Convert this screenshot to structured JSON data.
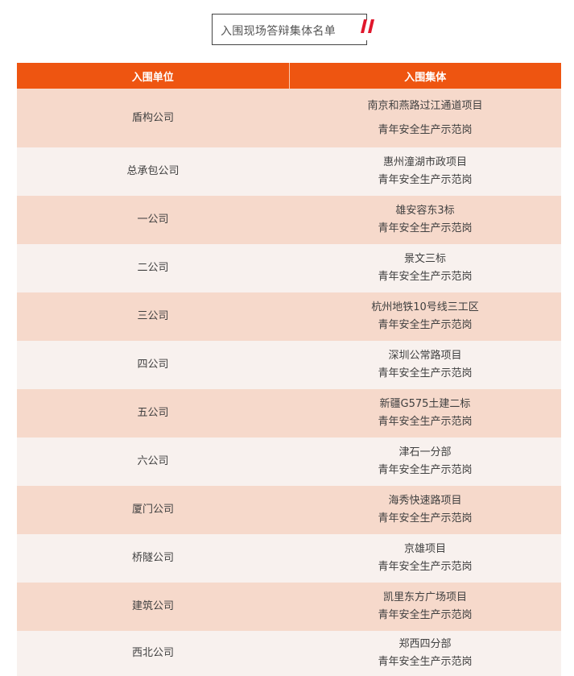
{
  "title": "入围现场答辩集体名单",
  "colors": {
    "header": "#ee5511",
    "row_odd": "#f6d9cb",
    "row_even": "#f8f1ee",
    "quote": "#e0162b"
  },
  "table": {
    "headers": [
      "入围单位",
      "入围集体"
    ],
    "rows": [
      {
        "unit": "盾构公司",
        "project": "南京和燕路过江通道项目",
        "group": "青年安全生产示范岗"
      },
      {
        "unit": "总承包公司",
        "project": "惠州潼湖市政项目",
        "group": "青年安全生产示范岗"
      },
      {
        "unit": "一公司",
        "project": "雄安容东3标",
        "group": "青年安全生产示范岗"
      },
      {
        "unit": "二公司",
        "project": "景文三标",
        "group": "青年安全生产示范岗"
      },
      {
        "unit": "三公司",
        "project": "杭州地铁10号线三工区",
        "group": "青年安全生产示范岗"
      },
      {
        "unit": "四公司",
        "project": "深圳公常路项目",
        "group": "青年安全生产示范岗"
      },
      {
        "unit": "五公司",
        "project": "新疆G575土建二标",
        "group": "青年安全生产示范岗"
      },
      {
        "unit": "六公司",
        "project": "津石一分部",
        "group": "青年安全生产示范岗"
      },
      {
        "unit": "厦门公司",
        "project": "海秀快速路项目",
        "group": "青年安全生产示范岗"
      },
      {
        "unit": "桥隧公司",
        "project": "京雄项目",
        "group": "青年安全生产示范岗"
      },
      {
        "unit": "建筑公司",
        "project": "凯里东方广场项目",
        "group": "青年安全生产示范岗"
      },
      {
        "unit": "西北公司",
        "project": "郑西四分部",
        "group": "青年安全生产示范岗"
      }
    ]
  }
}
